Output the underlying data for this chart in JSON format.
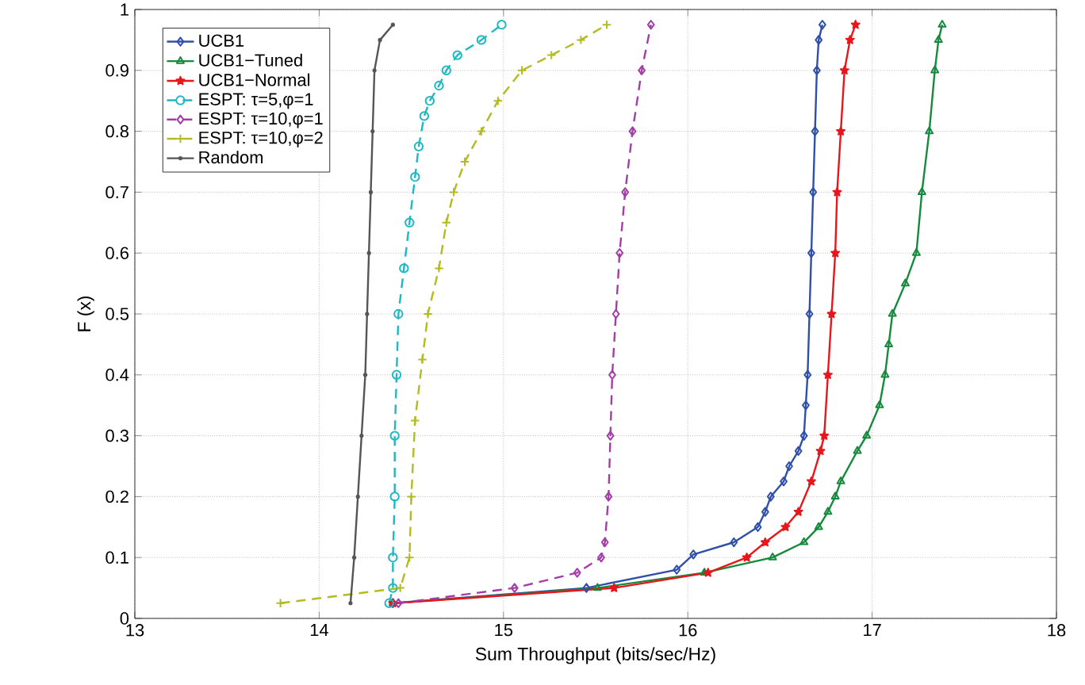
{
  "chart_data": {
    "type": "line",
    "xlabel": "Sum Throughput (bits/sec/Hz)",
    "ylabel": "F (x)",
    "xlim": [
      13,
      18
    ],
    "ylim": [
      0,
      1
    ],
    "xticks": [
      13,
      14,
      15,
      16,
      17,
      18
    ],
    "yticks": [
      0,
      0.1,
      0.2,
      0.3,
      0.4,
      0.5,
      0.6,
      0.7,
      0.8,
      0.9,
      1
    ],
    "grid": true,
    "legend": "top left",
    "series": [
      {
        "name": "UCB1",
        "color": "#2f4fa8",
        "marker": "diamond",
        "line_style": "solid",
        "x": [
          14.4,
          15.45,
          15.94,
          16.03,
          16.25,
          16.38,
          16.42,
          16.45,
          16.52,
          16.55,
          16.6,
          16.63,
          16.64,
          16.65,
          16.66,
          16.67,
          16.68,
          16.69,
          16.7,
          16.71,
          16.73
        ],
        "values": [
          0.025,
          0.05,
          0.08,
          0.105,
          0.125,
          0.15,
          0.175,
          0.2,
          0.225,
          0.25,
          0.275,
          0.3,
          0.35,
          0.4,
          0.5,
          0.6,
          0.7,
          0.8,
          0.9,
          0.95,
          0.975
        ]
      },
      {
        "name": "UCB1−Tuned",
        "color": "#168a3c",
        "marker": "triangle",
        "line_style": "solid",
        "x": [
          14.4,
          15.51,
          16.09,
          16.46,
          16.63,
          16.71,
          16.76,
          16.8,
          16.83,
          16.92,
          16.97,
          17.04,
          17.07,
          17.09,
          17.11,
          17.18,
          17.24,
          17.27,
          17.31,
          17.34,
          17.36,
          17.38
        ],
        "values": [
          0.025,
          0.05,
          0.075,
          0.1,
          0.125,
          0.15,
          0.175,
          0.2,
          0.225,
          0.275,
          0.3,
          0.35,
          0.4,
          0.45,
          0.5,
          0.55,
          0.6,
          0.7,
          0.8,
          0.9,
          0.95,
          0.975
        ]
      },
      {
        "name": "UCB1−Normal",
        "color": "#e8161b",
        "marker": "star",
        "line_style": "solid",
        "x": [
          14.4,
          15.6,
          16.11,
          16.32,
          16.42,
          16.53,
          16.6,
          16.67,
          16.72,
          16.74,
          16.76,
          16.78,
          16.8,
          16.81,
          16.83,
          16.85,
          16.88,
          16.91
        ],
        "values": [
          0.025,
          0.05,
          0.075,
          0.1,
          0.125,
          0.15,
          0.175,
          0.225,
          0.275,
          0.3,
          0.4,
          0.5,
          0.6,
          0.7,
          0.8,
          0.9,
          0.95,
          0.975
        ]
      },
      {
        "name": "ESPT: τ=5,φ=1",
        "color": "#1fb8c2",
        "marker": "circle",
        "line_style": "dashed",
        "x": [
          14.38,
          14.4,
          14.4,
          14.41,
          14.41,
          14.42,
          14.43,
          14.46,
          14.49,
          14.52,
          14.54,
          14.57,
          14.6,
          14.65,
          14.69,
          14.75,
          14.88,
          14.99
        ],
        "values": [
          0.025,
          0.05,
          0.1,
          0.2,
          0.3,
          0.4,
          0.5,
          0.575,
          0.65,
          0.725,
          0.775,
          0.825,
          0.85,
          0.875,
          0.9,
          0.925,
          0.95,
          0.975
        ]
      },
      {
        "name": "ESPT: τ=10,φ=1",
        "color": "#a23ea6",
        "marker": "diamond",
        "line_style": "dashed",
        "x": [
          14.43,
          15.06,
          15.4,
          15.53,
          15.55,
          15.57,
          15.58,
          15.59,
          15.61,
          15.63,
          15.66,
          15.7,
          15.75,
          15.8
        ],
        "values": [
          0.025,
          0.05,
          0.075,
          0.1,
          0.125,
          0.2,
          0.3,
          0.4,
          0.5,
          0.6,
          0.7,
          0.8,
          0.9,
          0.975
        ]
      },
      {
        "name": "ESPT: τ=10,φ=2",
        "color": "#b5bb1e",
        "marker": "cross",
        "line_style": "dashed",
        "x": [
          13.79,
          14.44,
          14.49,
          14.5,
          14.52,
          14.56,
          14.59,
          14.65,
          14.69,
          14.73,
          14.79,
          14.88,
          14.97,
          15.1,
          15.26,
          15.42,
          15.56
        ],
        "values": [
          0.025,
          0.05,
          0.1,
          0.2,
          0.325,
          0.425,
          0.5,
          0.575,
          0.65,
          0.7,
          0.75,
          0.8,
          0.85,
          0.9,
          0.925,
          0.95,
          0.975
        ]
      },
      {
        "name": "Random",
        "color": "#555555",
        "marker": "circle",
        "line_style": "solid",
        "x": [
          14.17,
          14.19,
          14.21,
          14.23,
          14.25,
          14.26,
          14.27,
          14.28,
          14.29,
          14.3,
          14.33,
          14.4
        ],
        "values": [
          0.025,
          0.1,
          0.2,
          0.3,
          0.4,
          0.5,
          0.6,
          0.7,
          0.8,
          0.9,
          0.95,
          0.975
        ]
      }
    ]
  }
}
